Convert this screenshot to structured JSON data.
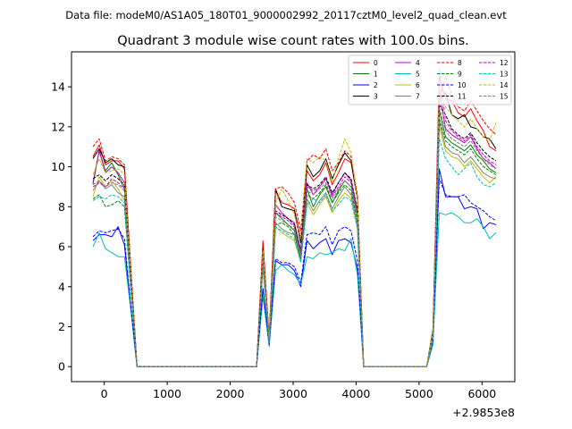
{
  "figure": {
    "suptitle": "Data file: modeM0/AS1A05_180T01_9000002992_20117cztM0_level2_quad_clean.evt",
    "offset_text": "+2.9853e8"
  },
  "chart_data": {
    "type": "line",
    "title": "Quadrant 3 module wise count rates with 100.0s bins.",
    "xlabel": "",
    "ylabel": "",
    "x_offset": 298530000,
    "xlim": [
      -520,
      6520
    ],
    "ylim": [
      -0.75,
      15.75
    ],
    "xticks": [
      0,
      1000,
      2000,
      3000,
      4000,
      5000,
      6000
    ],
    "yticks": [
      0,
      2,
      4,
      6,
      8,
      10,
      12,
      14
    ],
    "legend_position": "top-right",
    "x": [
      -180,
      -80,
      20,
      120,
      220,
      320,
      420,
      520,
      620,
      720,
      820,
      920,
      1020,
      1120,
      1220,
      1320,
      1420,
      1520,
      1620,
      1720,
      1820,
      1920,
      2020,
      2120,
      2220,
      2320,
      2420,
      2520,
      2620,
      2720,
      2820,
      2920,
      3020,
      3120,
      3220,
      3320,
      3420,
      3520,
      3620,
      3720,
      3820,
      3920,
      4020,
      4120,
      4220,
      4320,
      4420,
      4520,
      4620,
      4720,
      4820,
      4920,
      5020,
      5120,
      5220,
      5320,
      5420,
      5520,
      5620,
      5720,
      5820,
      5920,
      6020,
      6120,
      6220
    ],
    "series": [
      {
        "name": "0",
        "color": "#ff0000",
        "dash": "solid",
        "values": [
          10.5,
          11.1,
          10.1,
          10.3,
          10.3,
          9.9,
          5.0,
          0,
          0,
          0,
          0,
          0,
          0,
          0,
          0,
          0,
          0,
          0,
          0,
          0,
          0,
          0,
          0,
          0,
          0,
          0,
          0,
          6.3,
          1.4,
          8.8,
          8.2,
          8.1,
          7.9,
          6.4,
          9.8,
          9.3,
          9.6,
          10.2,
          9.1,
          9.7,
          10.4,
          10.2,
          8.4,
          0,
          0,
          0,
          0,
          0,
          0,
          0,
          0,
          0,
          0,
          0,
          1.8,
          14.5,
          13.4,
          13.3,
          12.7,
          12.5,
          12.9,
          12.3,
          11.8,
          11.0,
          10.8
        ]
      },
      {
        "name": "1",
        "color": "#008000",
        "dash": "solid",
        "values": [
          9.1,
          10.8,
          9.8,
          10.2,
          9.6,
          8.9,
          4.5,
          0,
          0,
          0,
          0,
          0,
          0,
          0,
          0,
          0,
          0,
          0,
          0,
          0,
          0,
          0,
          0,
          0,
          0,
          0,
          0,
          5.5,
          1.3,
          7.7,
          7.4,
          7.1,
          6.8,
          5.6,
          8.9,
          8.0,
          8.6,
          9.0,
          8.2,
          8.8,
          9.3,
          9.0,
          7.5,
          0,
          0,
          0,
          0,
          0,
          0,
          0,
          0,
          0,
          0,
          0,
          1.5,
          12.8,
          11.5,
          11.2,
          11.0,
          10.8,
          11.1,
          10.6,
          10.3,
          9.9,
          9.7
        ]
      },
      {
        "name": "2",
        "color": "#0000ff",
        "dash": "solid",
        "values": [
          6.3,
          6.6,
          6.6,
          6.5,
          7.0,
          6.1,
          3.0,
          0,
          0,
          0,
          0,
          0,
          0,
          0,
          0,
          0,
          0,
          0,
          0,
          0,
          0,
          0,
          0,
          0,
          0,
          0,
          0,
          3.9,
          1.1,
          5.3,
          5.1,
          5.1,
          4.8,
          4.0,
          6.3,
          5.9,
          6.2,
          6.4,
          5.6,
          6.3,
          6.4,
          6.2,
          4.9,
          0,
          0,
          0,
          0,
          0,
          0,
          0,
          0,
          0,
          0,
          0,
          1.2,
          9.9,
          8.5,
          8.5,
          8.5,
          7.9,
          8.0,
          7.9,
          6.9,
          7.2,
          7.1
        ]
      },
      {
        "name": "3",
        "color": "#000000",
        "dash": "solid",
        "values": [
          10.4,
          10.9,
          10.2,
          10.4,
          10.1,
          10.0,
          4.9,
          0,
          0,
          0,
          0,
          0,
          0,
          0,
          0,
          0,
          0,
          0,
          0,
          0,
          0,
          0,
          0,
          0,
          0,
          0,
          0,
          5.9,
          1.4,
          8.9,
          8.0,
          7.9,
          7.8,
          6.2,
          10.1,
          9.5,
          9.8,
          10.4,
          9.4,
          10.1,
          10.7,
          10.3,
          8.4,
          0,
          0,
          0,
          0,
          0,
          0,
          0,
          0,
          0,
          0,
          0,
          1.8,
          13.3,
          13.7,
          12.6,
          12.4,
          12.6,
          12.0,
          11.9,
          11.5,
          11.4,
          10.9
        ]
      },
      {
        "name": "4",
        "color": "#c000c0",
        "dash": "solid",
        "values": [
          9.2,
          10.8,
          9.7,
          10.0,
          9.7,
          9.2,
          4.6,
          0,
          0,
          0,
          0,
          0,
          0,
          0,
          0,
          0,
          0,
          0,
          0,
          0,
          0,
          0,
          0,
          0,
          0,
          0,
          0,
          5.6,
          1.3,
          8.1,
          7.7,
          7.4,
          7.2,
          5.8,
          9.2,
          8.6,
          9.0,
          9.4,
          8.6,
          9.2,
          9.7,
          9.3,
          7.8,
          0,
          0,
          0,
          0,
          0,
          0,
          0,
          0,
          0,
          0,
          0,
          1.6,
          13.8,
          11.9,
          11.6,
          11.4,
          11.2,
          11.5,
          10.9,
          10.4,
          10.2,
          9.9
        ]
      },
      {
        "name": "5",
        "color": "#00bfbf",
        "dash": "solid",
        "values": [
          6.0,
          6.7,
          5.9,
          5.7,
          5.5,
          5.5,
          2.9,
          0,
          0,
          0,
          0,
          0,
          0,
          0,
          0,
          0,
          0,
          0,
          0,
          0,
          0,
          0,
          0,
          0,
          0,
          0,
          0,
          3.5,
          1.0,
          4.8,
          5.1,
          4.8,
          4.6,
          4.1,
          5.5,
          5.4,
          5.7,
          5.6,
          5.7,
          5.9,
          5.8,
          6.4,
          4.6,
          0,
          0,
          0,
          0,
          0,
          0,
          0,
          0,
          0,
          0,
          0,
          1.1,
          7.7,
          7.6,
          7.7,
          7.5,
          7.2,
          7.2,
          7.4,
          7.0,
          6.4,
          6.7
        ]
      },
      {
        "name": "6",
        "color": "#bfbf00",
        "dash": "solid",
        "values": [
          8.5,
          9.5,
          9.0,
          9.3,
          8.9,
          8.3,
          4.2,
          0,
          0,
          0,
          0,
          0,
          0,
          0,
          0,
          0,
          0,
          0,
          0,
          0,
          0,
          0,
          0,
          0,
          0,
          0,
          0,
          5.0,
          1.2,
          7.0,
          6.7,
          6.5,
          6.3,
          5.3,
          8.2,
          7.6,
          8.1,
          8.5,
          7.7,
          8.3,
          8.7,
          8.4,
          7.0,
          0,
          0,
          0,
          0,
          0,
          0,
          0,
          0,
          0,
          0,
          0,
          1.4,
          12.0,
          10.8,
          10.5,
          10.4,
          10.0,
          10.3,
          9.9,
          9.5,
          9.2,
          9.5
        ]
      },
      {
        "name": "7",
        "color": "#808080",
        "dash": "solid",
        "values": [
          8.8,
          9.3,
          8.9,
          9.1,
          8.7,
          8.5,
          4.3,
          0,
          0,
          0,
          0,
          0,
          0,
          0,
          0,
          0,
          0,
          0,
          0,
          0,
          0,
          0,
          0,
          0,
          0,
          0,
          0,
          5.2,
          1.2,
          7.2,
          6.9,
          6.7,
          6.6,
          5.4,
          8.4,
          7.8,
          8.3,
          8.7,
          7.9,
          8.5,
          9.0,
          8.6,
          7.1,
          0,
          0,
          0,
          0,
          0,
          0,
          0,
          0,
          0,
          0,
          0,
          1.5,
          12.3,
          11.0,
          10.7,
          10.6,
          10.2,
          10.5,
          10.1,
          9.7,
          9.5,
          9.4
        ]
      },
      {
        "name": "8",
        "color": "#ff0000",
        "dash": "dashed",
        "values": [
          11.0,
          11.4,
          10.3,
          10.5,
          10.4,
          10.1,
          5.1,
          0,
          0,
          0,
          0,
          0,
          0,
          0,
          0,
          0,
          0,
          0,
          0,
          0,
          0,
          0,
          0,
          0,
          0,
          0,
          0,
          6.1,
          1.5,
          8.9,
          9.0,
          8.7,
          8.2,
          6.8,
          10.3,
          10.6,
          10.4,
          10.9,
          9.8,
          10.2,
          10.8,
          10.5,
          8.6,
          0,
          0,
          0,
          0,
          0,
          0,
          0,
          0,
          0,
          0,
          0,
          1.9,
          13.5,
          14.5,
          13.6,
          13.0,
          12.8,
          13.3,
          12.8,
          12.3,
          11.9,
          11.6
        ]
      },
      {
        "name": "9",
        "color": "#008000",
        "dash": "dashed",
        "values": [
          8.4,
          8.6,
          8.0,
          8.1,
          8.3,
          8.0,
          4.0,
          0,
          0,
          0,
          0,
          0,
          0,
          0,
          0,
          0,
          0,
          0,
          0,
          0,
          0,
          0,
          0,
          0,
          0,
          0,
          0,
          5.0,
          1.2,
          7.1,
          7.2,
          7.0,
          6.6,
          5.4,
          8.6,
          8.4,
          8.7,
          9.1,
          8.2,
          8.7,
          9.1,
          8.8,
          7.3,
          0,
          0,
          0,
          0,
          0,
          0,
          0,
          0,
          0,
          0,
          0,
          1.5,
          12.4,
          11.3,
          11.0,
          10.8,
          10.6,
          10.9,
          10.4,
          10.0,
          9.8,
          9.6
        ]
      },
      {
        "name": "10",
        "color": "#0000ff",
        "dash": "dashed",
        "values": [
          6.5,
          6.8,
          6.7,
          6.8,
          6.9,
          6.4,
          3.1,
          0,
          0,
          0,
          0,
          0,
          0,
          0,
          0,
          0,
          0,
          0,
          0,
          0,
          0,
          0,
          0,
          0,
          0,
          0,
          0,
          3.9,
          1.1,
          5.4,
          5.2,
          5.2,
          5.0,
          4.2,
          6.6,
          6.7,
          6.6,
          7.0,
          6.1,
          6.8,
          7.0,
          6.8,
          5.3,
          0,
          0,
          0,
          0,
          0,
          0,
          0,
          0,
          0,
          0,
          0,
          1.3,
          9.4,
          8.6,
          8.5,
          8.5,
          8.6,
          8.2,
          8.0,
          7.8,
          7.5,
          7.3
        ]
      },
      {
        "name": "11",
        "color": "#000000",
        "dash": "dashed",
        "values": [
          9.4,
          9.6,
          9.3,
          9.6,
          9.4,
          9.1,
          4.6,
          0,
          0,
          0,
          0,
          0,
          0,
          0,
          0,
          0,
          0,
          0,
          0,
          0,
          0,
          0,
          0,
          0,
          0,
          0,
          0,
          5.6,
          1.3,
          7.8,
          7.6,
          7.4,
          7.1,
          5.8,
          9.1,
          8.9,
          9.1,
          9.5,
          8.7,
          9.2,
          9.7,
          9.4,
          7.8,
          0,
          0,
          0,
          0,
          0,
          0,
          0,
          0,
          0,
          0,
          0,
          1.6,
          13.1,
          12.6,
          11.9,
          11.6,
          11.4,
          11.7,
          11.2,
          10.8,
          10.5,
          10.3
        ]
      },
      {
        "name": "12",
        "color": "#c000c0",
        "dash": "dashed",
        "values": [
          9.0,
          9.2,
          9.0,
          9.4,
          9.2,
          8.9,
          4.5,
          0,
          0,
          0,
          0,
          0,
          0,
          0,
          0,
          0,
          0,
          0,
          0,
          0,
          0,
          0,
          0,
          0,
          0,
          0,
          0,
          5.5,
          1.3,
          7.7,
          7.5,
          7.3,
          7.0,
          5.7,
          9.0,
          8.8,
          9.0,
          9.4,
          8.5,
          9.0,
          9.5,
          9.2,
          7.6,
          0,
          0,
          0,
          0,
          0,
          0,
          0,
          0,
          0,
          0,
          0,
          1.6,
          14.9,
          12.3,
          11.8,
          11.5,
          11.3,
          11.6,
          11.0,
          10.6,
          10.3,
          10.1
        ]
      },
      {
        "name": "13",
        "color": "#00bfbf",
        "dash": "dashed",
        "values": [
          8.3,
          8.5,
          8.4,
          8.6,
          8.5,
          8.2,
          4.1,
          0,
          0,
          0,
          0,
          0,
          0,
          0,
          0,
          0,
          0,
          0,
          0,
          0,
          0,
          0,
          0,
          0,
          0,
          0,
          0,
          5.0,
          1.2,
          7.0,
          6.8,
          6.6,
          6.4,
          5.2,
          8.1,
          8.4,
          8.2,
          8.6,
          7.8,
          8.1,
          8.5,
          8.3,
          6.9,
          0,
          0,
          0,
          0,
          0,
          0,
          0,
          0,
          0,
          0,
          0,
          1.4,
          11.4,
          10.4,
          10.0,
          9.6,
          9.9,
          10.2,
          9.5,
          9.1,
          9.0,
          9.2
        ]
      },
      {
        "name": "14",
        "color": "#bfbf00",
        "dash": "dashed",
        "values": [
          9.6,
          10.4,
          9.7,
          9.8,
          9.9,
          9.6,
          4.8,
          0,
          0,
          0,
          0,
          0,
          0,
          0,
          0,
          0,
          0,
          0,
          0,
          0,
          0,
          0,
          0,
          0,
          0,
          0,
          0,
          5.8,
          1.4,
          8.2,
          8.9,
          8.3,
          7.6,
          6.4,
          10.4,
          10.2,
          10.5,
          10.3,
          9.2,
          10.4,
          11.4,
          10.7,
          8.3,
          0,
          0,
          0,
          0,
          0,
          0,
          0,
          0,
          0,
          0,
          0,
          1.8,
          13.9,
          13.0,
          12.6,
          12.3,
          12.0,
          12.4,
          11.9,
          11.5,
          11.3,
          12.2
        ]
      },
      {
        "name": "15",
        "color": "#808080",
        "dash": "dashed",
        "values": [
          9.1,
          9.3,
          9.0,
          9.2,
          9.1,
          8.8,
          4.4,
          0,
          0,
          0,
          0,
          0,
          0,
          0,
          0,
          0,
          0,
          0,
          0,
          0,
          0,
          0,
          0,
          0,
          0,
          0,
          0,
          5.4,
          1.3,
          7.5,
          7.3,
          7.1,
          6.9,
          5.6,
          8.8,
          8.6,
          8.9,
          9.2,
          8.4,
          8.9,
          9.3,
          9.0,
          7.5,
          0,
          0,
          0,
          0,
          0,
          0,
          0,
          0,
          0,
          0,
          0,
          1.5,
          13.0,
          11.8,
          11.4,
          11.2,
          11.0,
          11.3,
          10.8,
          10.4,
          10.1,
          9.9
        ]
      }
    ]
  }
}
